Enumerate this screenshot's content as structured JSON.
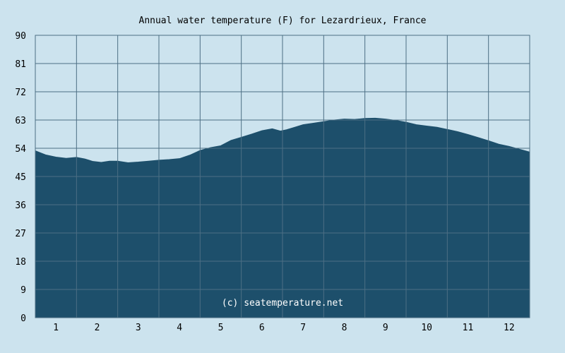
{
  "chart_data": {
    "type": "area",
    "title": "Annual water temperature (F) for Lezardrieux, France",
    "xlabel": "",
    "ylabel": "",
    "ylim": [
      0,
      90
    ],
    "xlim": [
      0.5,
      12.5
    ],
    "yticks": [
      "0",
      "9",
      "18",
      "27",
      "36",
      "45",
      "54",
      "63",
      "72",
      "81",
      "90"
    ],
    "xticks": [
      "1",
      "2",
      "3",
      "4",
      "5",
      "6",
      "7",
      "8",
      "9",
      "10",
      "11",
      "12"
    ],
    "grid": true,
    "annotation": "(c) seatemperature.net",
    "colors": {
      "background": "#cce3ee",
      "fill": "#1d4f6b",
      "grid": "#4d6f84",
      "text": "#000000"
    },
    "series": [
      {
        "x": [
          0.5,
          0.75,
          1.0,
          1.25,
          1.5,
          1.7,
          1.9,
          2.1,
          2.3,
          2.5,
          2.75,
          3.0,
          3.25,
          3.5,
          3.75,
          4.0,
          4.25,
          4.5,
          4.75,
          5.0,
          5.25,
          5.5,
          5.75,
          6.0,
          6.25,
          6.45,
          6.6,
          6.8,
          7.0,
          7.25,
          7.5,
          7.75,
          8.0,
          8.25,
          8.5,
          8.75,
          9.0,
          9.25,
          9.5,
          9.75,
          10.0,
          10.25,
          10.5,
          10.75,
          11.0,
          11.25,
          11.5,
          11.75,
          12.0,
          12.25,
          12.5
        ],
        "values": [
          53.2,
          51.9,
          51.2,
          50.8,
          51.1,
          50.6,
          49.8,
          49.5,
          49.9,
          49.9,
          49.4,
          49.6,
          49.9,
          50.2,
          50.4,
          50.7,
          51.8,
          53.3,
          54.2,
          54.8,
          56.5,
          57.5,
          58.5,
          59.6,
          60.2,
          59.5,
          59.9,
          60.7,
          61.5,
          62.0,
          62.5,
          63.0,
          63.3,
          63.2,
          63.5,
          63.6,
          63.3,
          62.9,
          62.3,
          61.5,
          61.1,
          60.7,
          60.0,
          59.3,
          58.4,
          57.4,
          56.4,
          55.3,
          54.6,
          53.7,
          52.8
        ]
      }
    ]
  }
}
